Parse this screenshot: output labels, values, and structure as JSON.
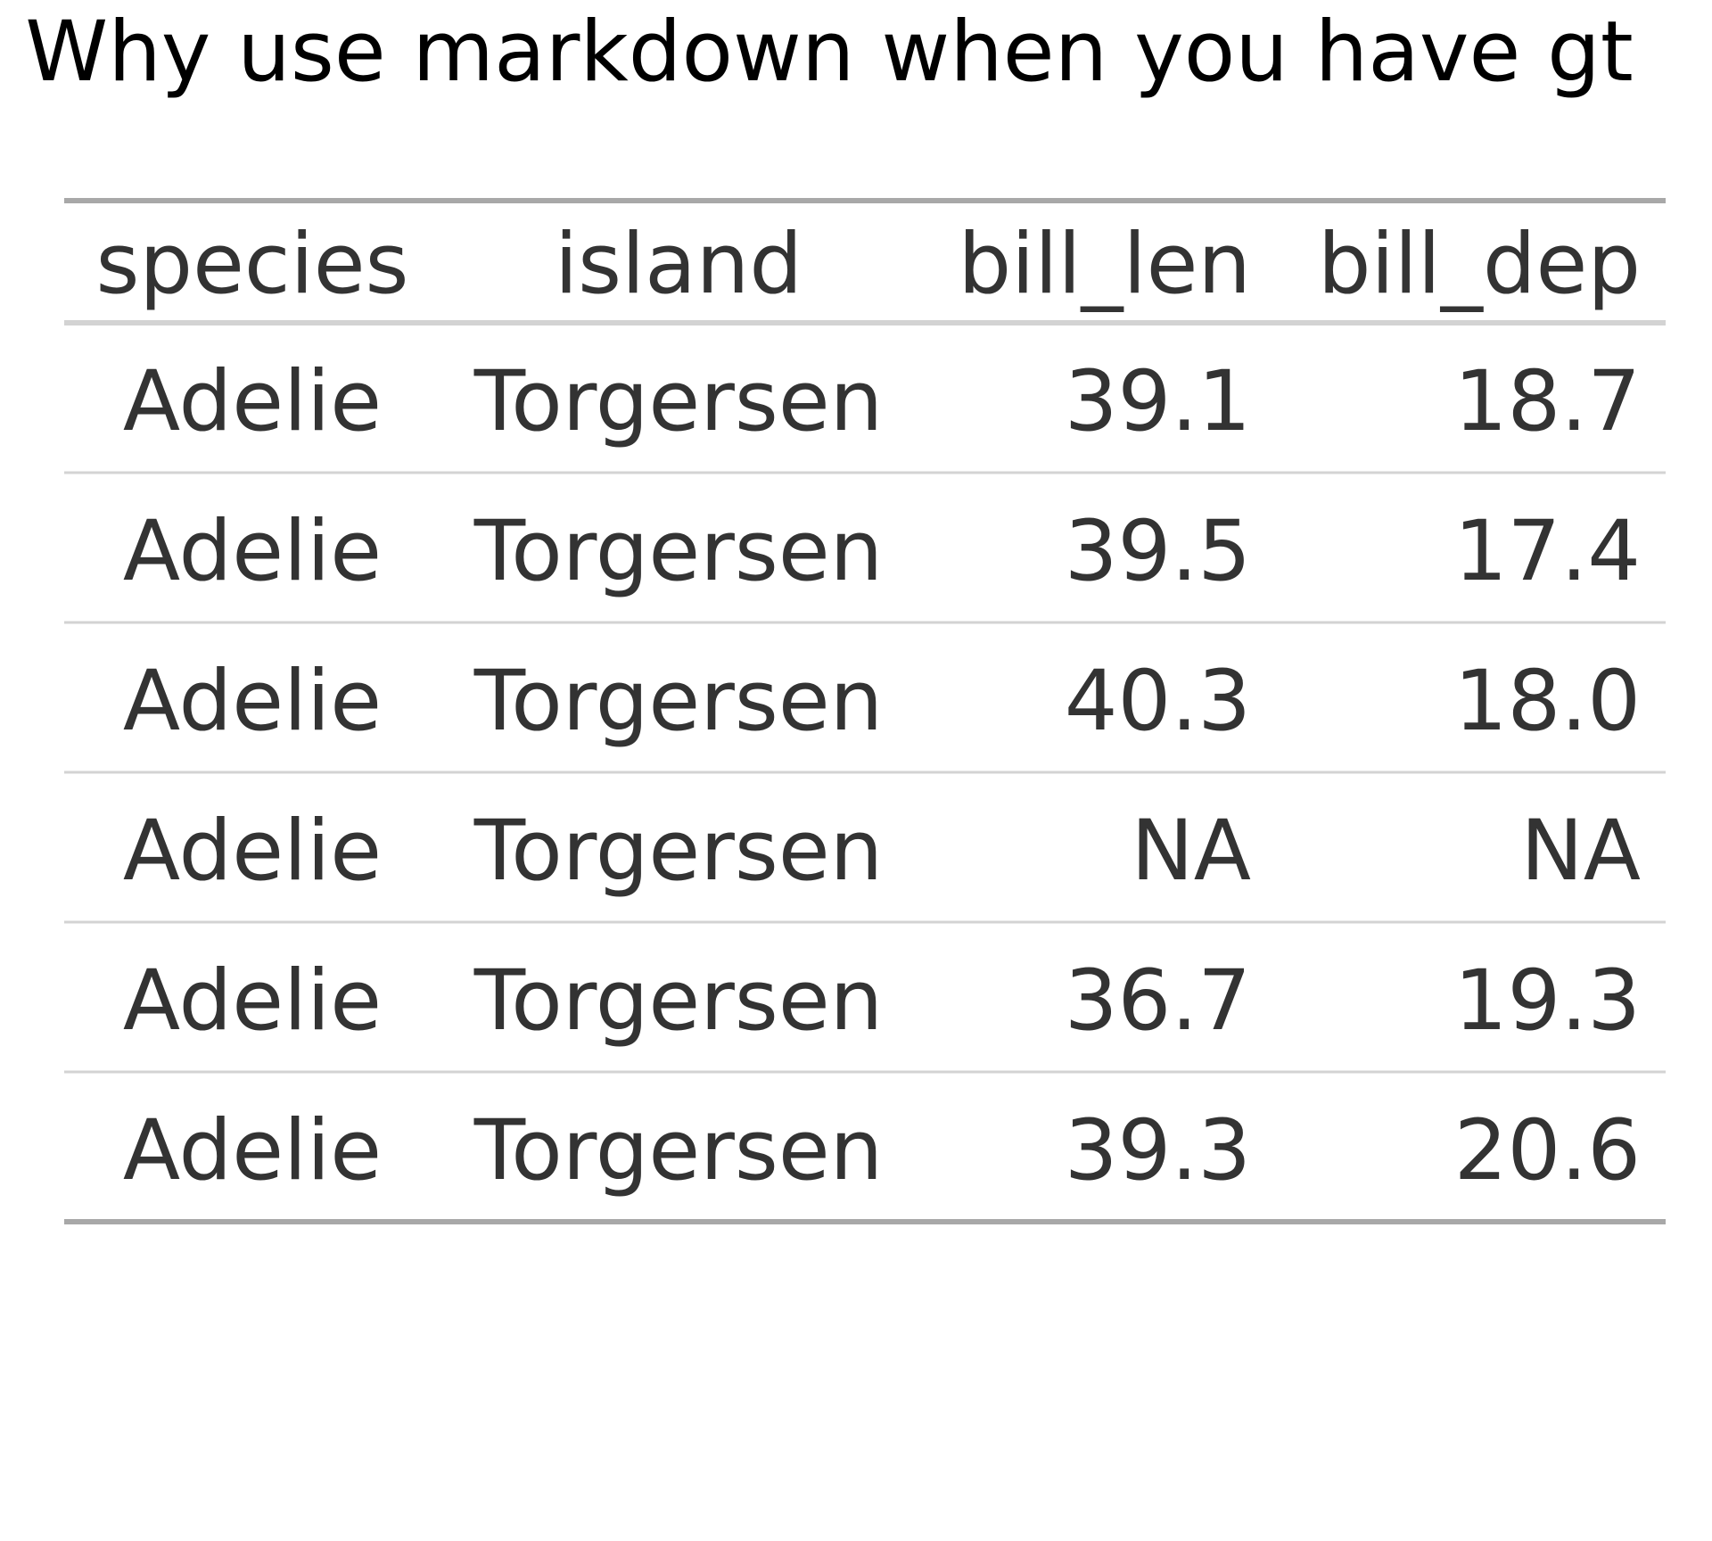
{
  "chart_data": {
    "type": "table",
    "title": "Why use markdown when you have gt",
    "columns": [
      "species",
      "island",
      "bill_len",
      "bill_dep"
    ],
    "rows": [
      [
        "Adelie",
        "Torgersen",
        "39.1",
        "18.7"
      ],
      [
        "Adelie",
        "Torgersen",
        "39.5",
        "17.4"
      ],
      [
        "Adelie",
        "Torgersen",
        "40.3",
        "18.0"
      ],
      [
        "Adelie",
        "Torgersen",
        "NA",
        "NA"
      ],
      [
        "Adelie",
        "Torgersen",
        "36.7",
        "19.3"
      ],
      [
        "Adelie",
        "Torgersen",
        "39.3",
        "20.6"
      ]
    ],
    "colors": {
      "title": "#000000",
      "text": "#333333",
      "outer_rule": "#a8a8a8",
      "inner_rule": "#d3d3d3"
    }
  }
}
